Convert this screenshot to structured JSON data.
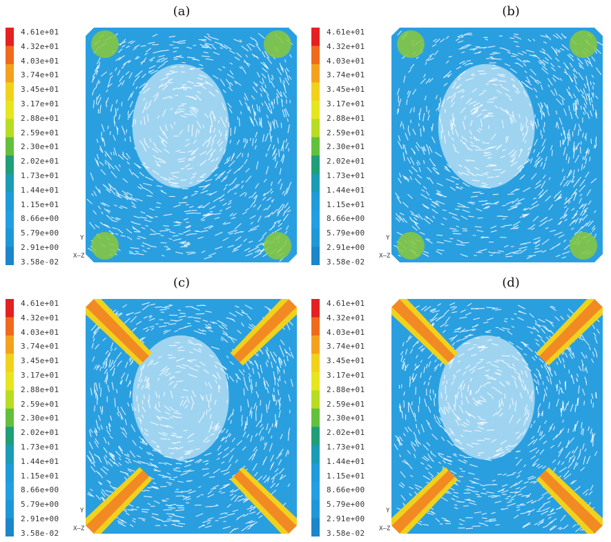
{
  "panels": [
    {
      "label": "(a)",
      "jets": 0.0
    },
    {
      "label": "(b)",
      "jets": 0.0
    },
    {
      "label": "(c)",
      "jets": 1.0
    },
    {
      "label": "(d)",
      "jets": 1.0
    }
  ],
  "colorbar": {
    "ticks": [
      "4.61e+01",
      "4.32e+01",
      "4.03e+01",
      "3.74e+01",
      "3.45e+01",
      "3.17e+01",
      "2.88e+01",
      "2.59e+01",
      "2.30e+01",
      "2.02e+01",
      "1.73e+01",
      "1.44e+01",
      "1.15e+01",
      "8.66e+00",
      "5.79e+00",
      "2.91e+00",
      "3.58e-02"
    ],
    "colors": [
      "#e52020",
      "#f06a1e",
      "#f4a21d",
      "#f1d21a",
      "#e6e61e",
      "#b8dc22",
      "#62c03a",
      "#1f9e78",
      "#1a9cb6",
      "#1e9bd8",
      "#229ee2",
      "#1e97d9",
      "#1b86c9"
    ]
  },
  "axis_triad": {
    "y": "Y",
    "x": "X",
    "z": "Z"
  },
  "colors": {
    "flow": "#2a9fe0",
    "jet_hot": "#f28a24",
    "jet_warm": "#f0d21c",
    "jet_green": "#8ac83a"
  }
}
